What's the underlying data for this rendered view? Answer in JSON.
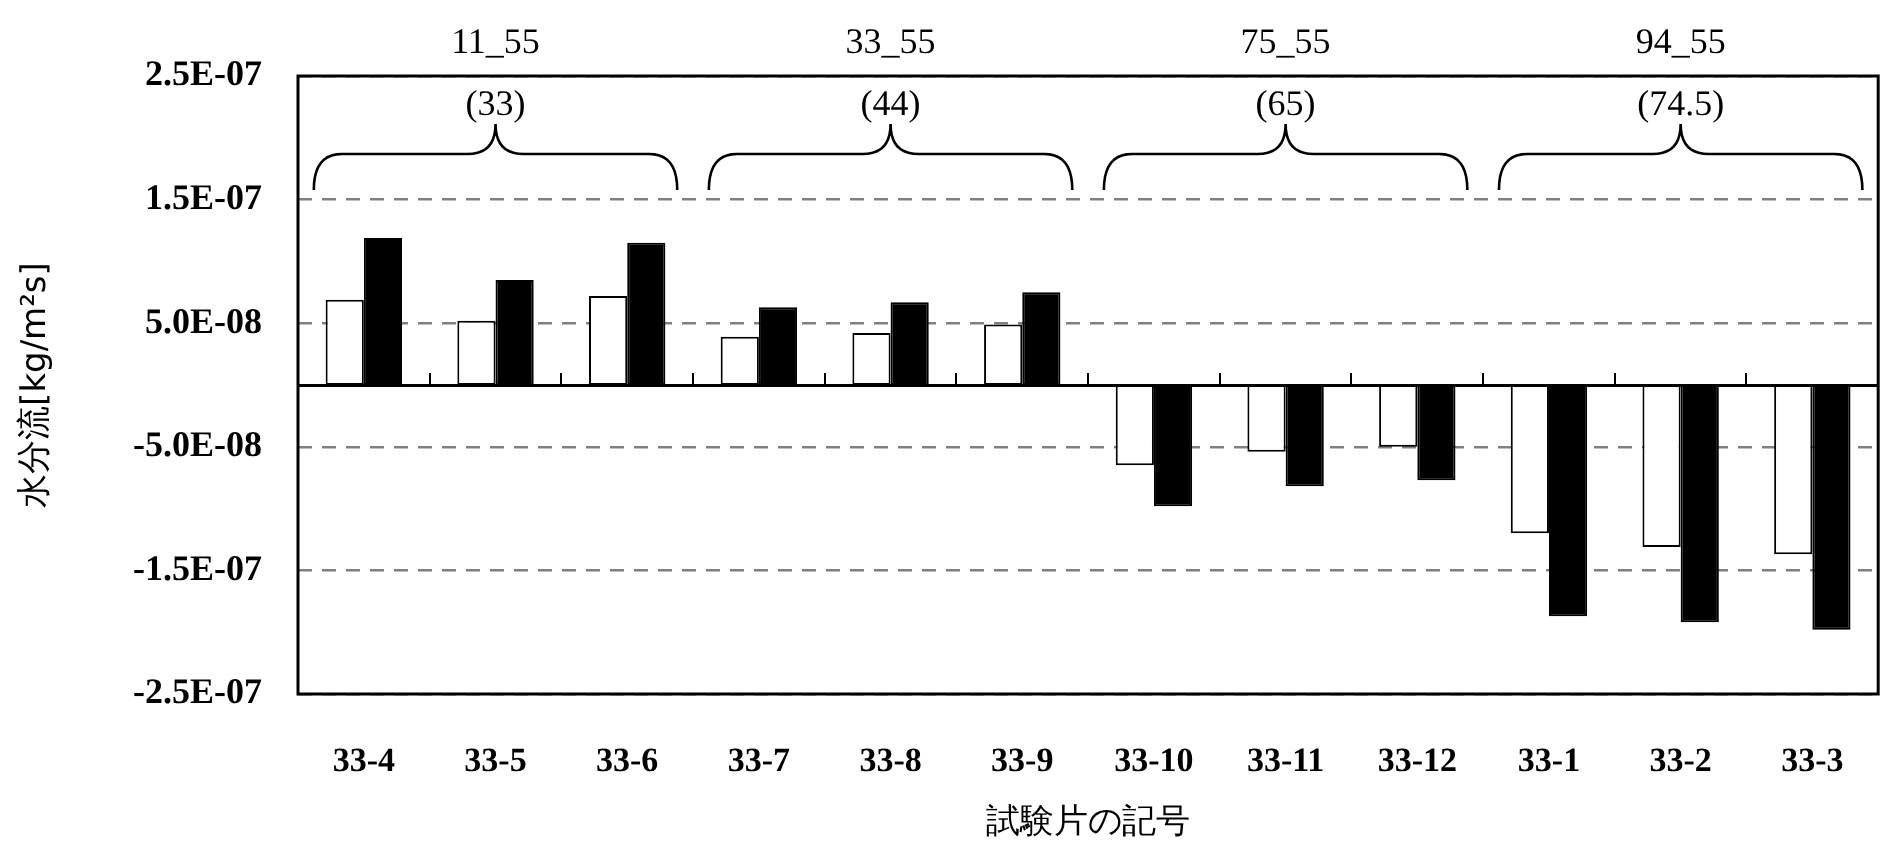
{
  "chart_data": {
    "type": "bar",
    "categories": [
      "33-4",
      "33-5",
      "33-6",
      "33-7",
      "33-8",
      "33-9",
      "33-10",
      "33-11",
      "33-12",
      "33-1",
      "33-2",
      "33-3"
    ],
    "series": [
      {
        "color": "#ffffff",
        "values": [
          6.9e-08,
          5.2e-08,
          7.2e-08,
          3.9e-08,
          4.2e-08,
          4.9e-08,
          -6.5e-08,
          -5.4e-08,
          -5e-08,
          -1.2e-07,
          -1.31e-07,
          -1.37e-07
        ]
      },
      {
        "color": "#000000",
        "values": [
          1.19e-07,
          8.5e-08,
          1.15e-07,
          6.3e-08,
          6.7e-08,
          7.5e-08,
          -9.8e-08,
          -8.2e-08,
          -7.7e-08,
          -1.87e-07,
          -1.92e-07,
          -1.98e-07
        ]
      }
    ],
    "ylim": [
      -2.5e-07,
      2.5e-07
    ],
    "yticks": [
      {
        "value": -2.5e-07,
        "label": "-2.5E-07"
      },
      {
        "value": -1.5e-07,
        "label": "-1.5E-07"
      },
      {
        "value": -5e-08,
        "label": "-5.0E-08"
      },
      {
        "value": 5e-08,
        "label": "5.0E-08"
      },
      {
        "value": 1.5e-07,
        "label": "1.5E-07"
      },
      {
        "value": 2.5e-07,
        "label": "2.5E-07"
      }
    ],
    "xlabel": "試験片の記号",
    "ylabel": "水分流[kg/m²s]",
    "annotations": [
      "11_55",
      "(33)",
      "33_55",
      "(44)",
      "75_55",
      "(65)",
      "94_55",
      "(74.5)"
    ],
    "grid": "y"
  }
}
